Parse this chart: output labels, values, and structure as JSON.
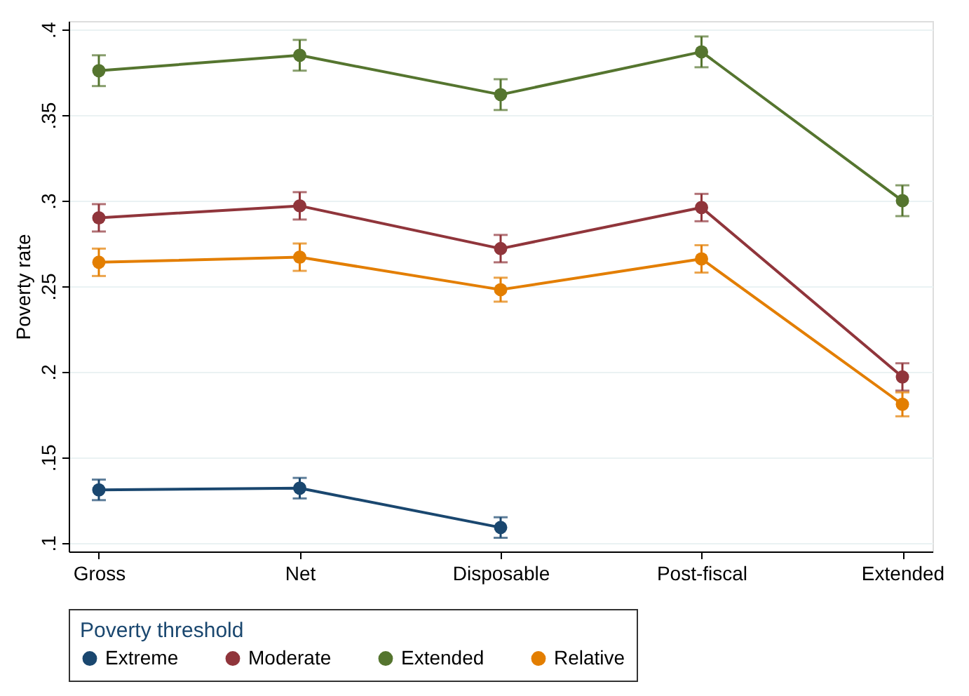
{
  "chart_data": {
    "type": "line",
    "ylabel": "Poverty rate",
    "legend_title": "Poverty threshold",
    "categories": [
      "Gross",
      "Net",
      "Disposable",
      "Post-fiscal",
      "Extended"
    ],
    "series": [
      {
        "name": "Extreme",
        "color": "#1a476f",
        "values": [
          0.131,
          0.132,
          0.109,
          null,
          null
        ],
        "errors": [
          0.006,
          0.006,
          0.006,
          null,
          null
        ]
      },
      {
        "name": "Moderate",
        "color": "#90353b",
        "values": [
          0.29,
          0.297,
          0.272,
          0.296,
          0.197
        ],
        "errors": [
          0.008,
          0.008,
          0.008,
          0.008,
          0.008
        ]
      },
      {
        "name": "Extended",
        "color": "#55752f",
        "values": [
          0.376,
          0.385,
          0.362,
          0.387,
          0.3
        ],
        "errors": [
          0.009,
          0.009,
          0.009,
          0.009,
          0.009
        ]
      },
      {
        "name": "Relative",
        "color": "#e37e00",
        "values": [
          0.264,
          0.267,
          0.248,
          0.266,
          0.181
        ],
        "errors": [
          0.008,
          0.008,
          0.007,
          0.008,
          0.007
        ]
      }
    ],
    "ylim": [
      0.095,
      0.405
    ],
    "yticks": [
      {
        "value": 0.1,
        "label": ".1"
      },
      {
        "value": 0.15,
        "label": ".15"
      },
      {
        "value": 0.2,
        "label": ".2"
      },
      {
        "value": 0.25,
        "label": ".25"
      },
      {
        "value": 0.3,
        "label": ".3"
      },
      {
        "value": 0.35,
        "label": ".35"
      },
      {
        "value": 0.4,
        "label": ".4"
      }
    ],
    "grid": "y",
    "legend": "bottom",
    "marker": "circle",
    "line_style": "solid"
  }
}
